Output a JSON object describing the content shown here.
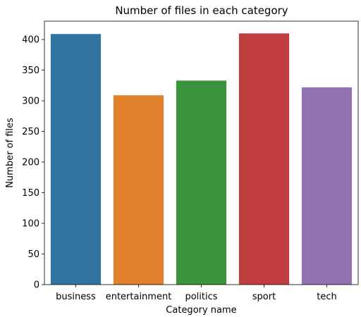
{
  "chart_data": {
    "type": "bar",
    "title": "Number of files in each category",
    "xlabel": "Category name",
    "ylabel": "Number of files",
    "categories": [
      "business",
      "entertainment",
      "politics",
      "sport",
      "tech"
    ],
    "values": [
      409,
      309,
      333,
      410,
      322
    ],
    "colors": [
      "#3274a1",
      "#e1812c",
      "#3a923a",
      "#c03d3e",
      "#9372b2"
    ],
    "ylim": [
      0,
      430
    ],
    "yticks": [
      0,
      50,
      100,
      150,
      200,
      250,
      300,
      350,
      400
    ],
    "grid": false,
    "legend": "none"
  }
}
